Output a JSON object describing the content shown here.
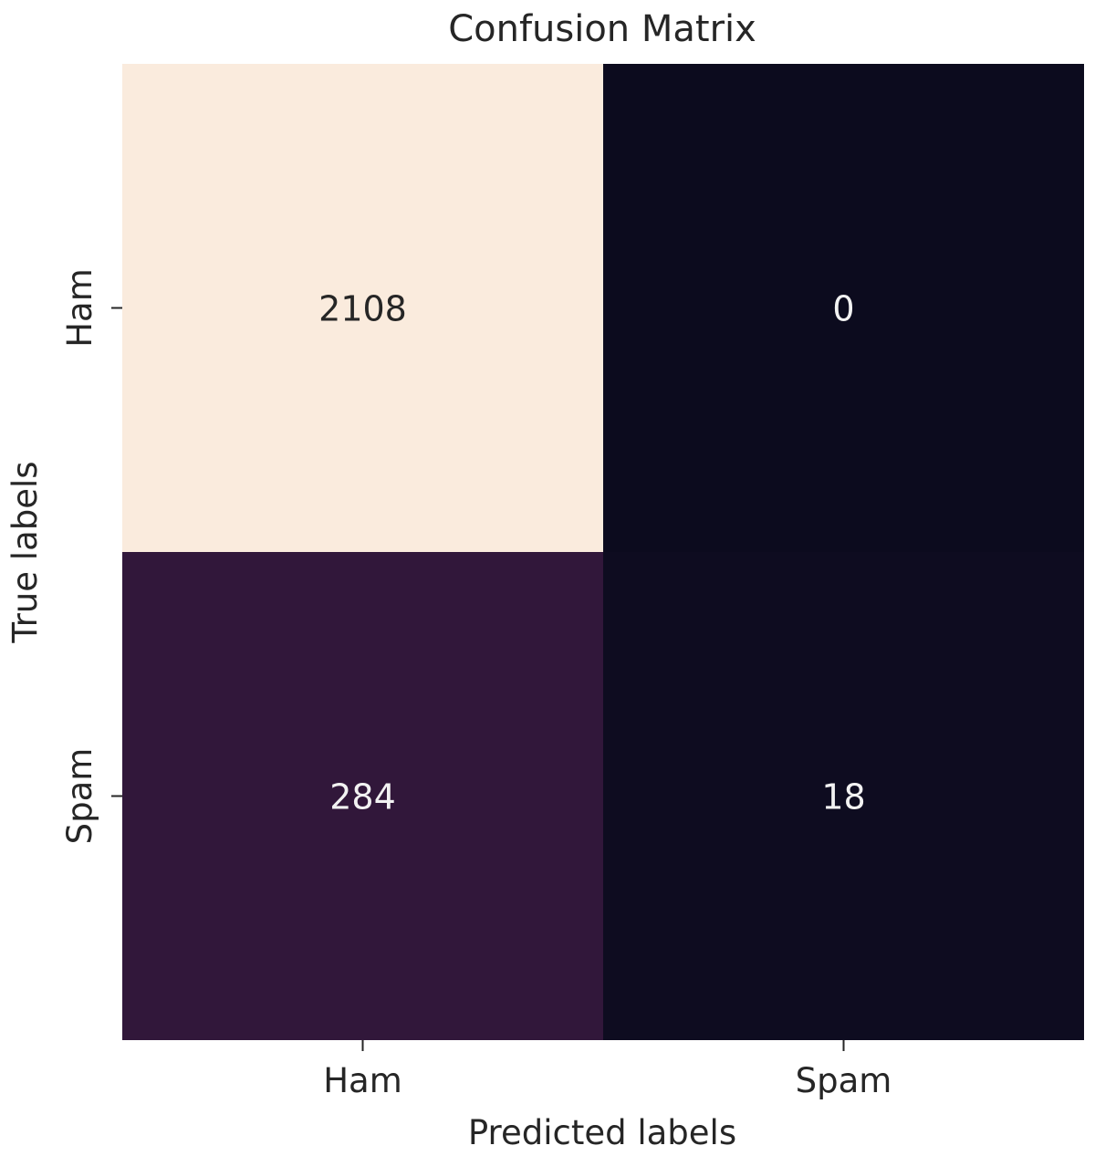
{
  "chart_data": {
    "type": "heatmap",
    "title": "Confusion Matrix",
    "xlabel": "Predicted labels",
    "ylabel": "True labels",
    "x_categories": [
      "Ham",
      "Spam"
    ],
    "y_categories": [
      "Ham",
      "Spam"
    ],
    "values": [
      [
        2108,
        0
      ],
      [
        284,
        18
      ]
    ],
    "colorbar": false,
    "grid": false,
    "colors": {
      "high": "#faebdd",
      "low": "#0c0b1e",
      "mid_284": "#31173a",
      "mid_18": "#0e0c20",
      "text_on_light": "#262626",
      "text_on_dark": "#f2f2f2"
    }
  }
}
